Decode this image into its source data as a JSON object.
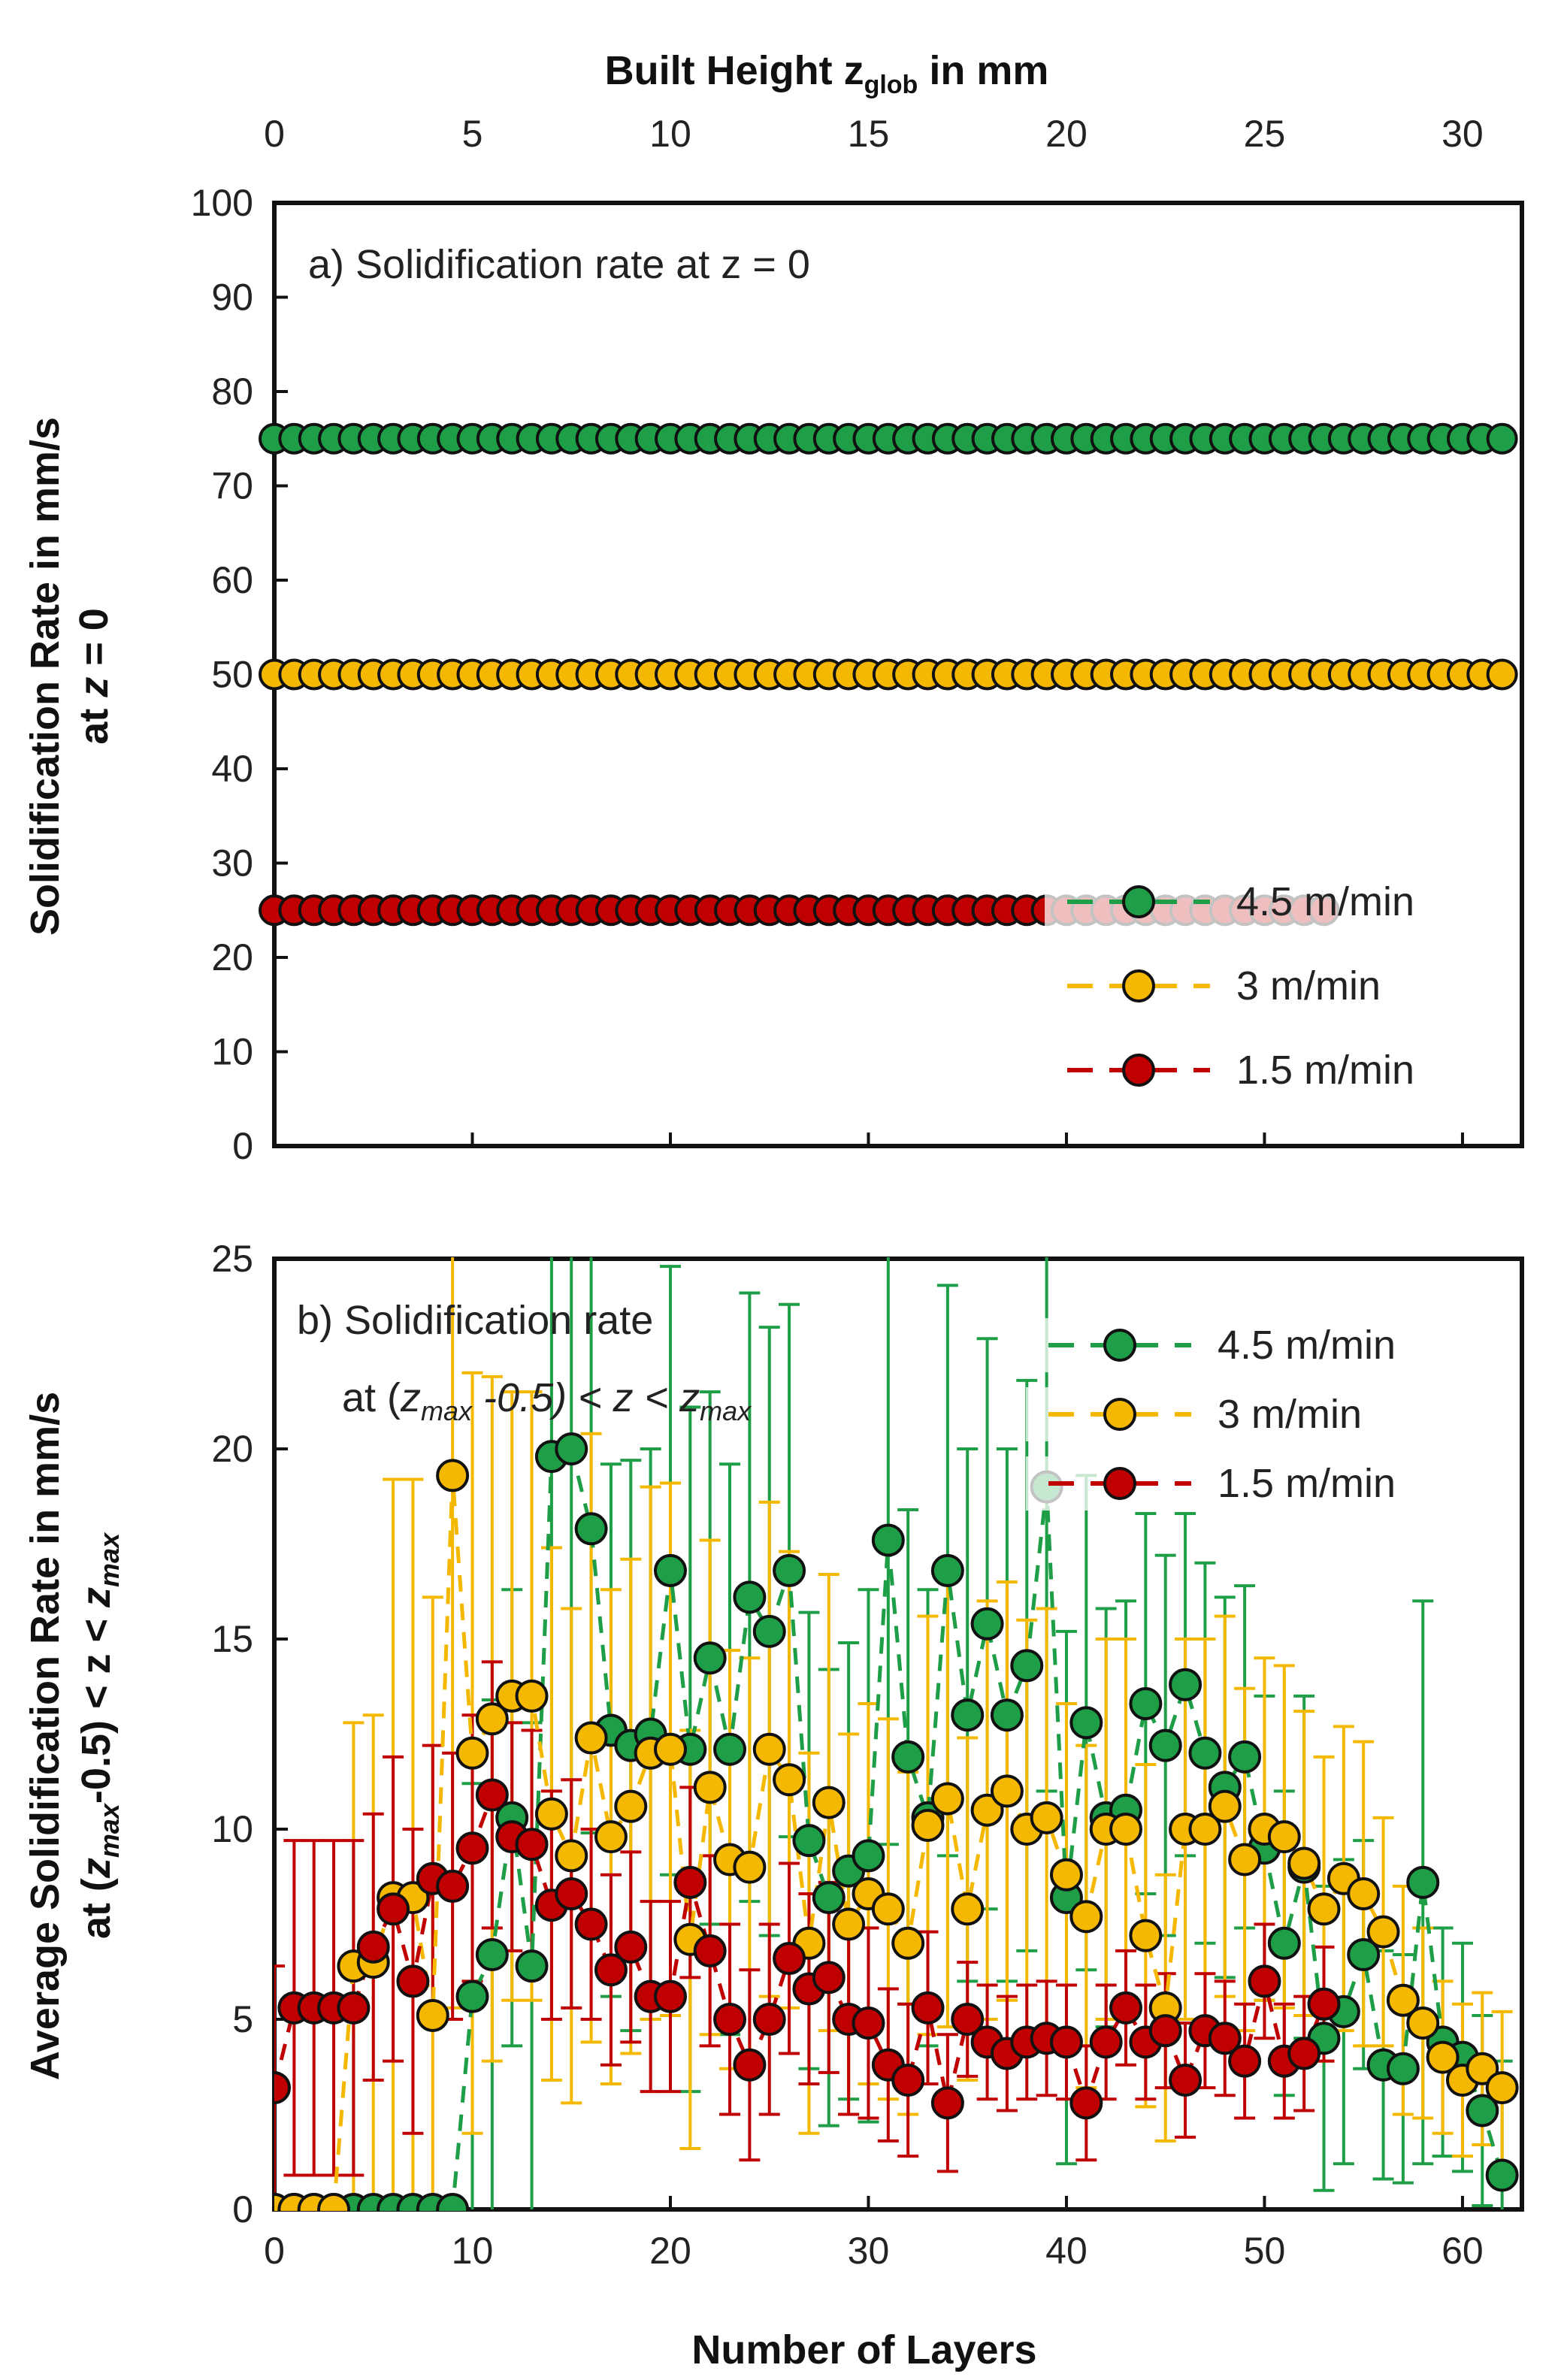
{
  "figure": {
    "top_axis_label": "Built Height",
    "top_axis_var": "z",
    "top_axis_sub": "glob",
    "top_axis_unit": "in mm",
    "bottom_axis_label": "Number of Layers"
  },
  "chart_data": [
    {
      "id": "a",
      "type": "scatter",
      "annotation": "a) Solidification rate at z = 0",
      "ylabel_line1": "Solidification  Rate in mm/s",
      "ylabel_line2_prefix": "at ",
      "ylabel_line2_var": "z",
      "ylabel_line2_suffix": " = 0",
      "xlim": [
        0,
        63
      ],
      "ylim": [
        0,
        100
      ],
      "yticks": [
        0,
        10,
        20,
        30,
        40,
        50,
        60,
        70,
        80,
        90,
        100
      ],
      "top_xlim": [
        0,
        31.5
      ],
      "top_xticks": [
        0,
        5,
        10,
        15,
        20,
        25,
        30
      ],
      "legend_position": "bottom-right",
      "series": [
        {
          "name": "4.5 m/min",
          "color": "#1e9e46",
          "x_range": [
            0,
            62
          ],
          "value": 75
        },
        {
          "name": "3 m/min",
          "color": "#f5b800",
          "x_range": [
            0,
            62
          ],
          "value": 50
        },
        {
          "name": "1.5 m/min",
          "color": "#c00000",
          "x_range": [
            0,
            53
          ],
          "value": 25
        }
      ]
    },
    {
      "id": "b",
      "type": "scatter",
      "annotation_line1": "b) Solidification rate",
      "annotation_line2_prefix": "at (",
      "annotation_line2_var": "z",
      "annotation_line2_sub": "max",
      "annotation_line2_mid": " -0.5) < z < ",
      "annotation_line2_var2": "z",
      "annotation_line2_sub2": "max",
      "ylabel_line1": "Average  Solidification  Rate in mm/s",
      "ylabel_line2_prefix": "at (",
      "ylabel_line2_var": "z",
      "ylabel_line2_sub": "max",
      "ylabel_line2_mid": "-0.5) < z < ",
      "ylabel_line2_var2": "z",
      "ylabel_line2_sub2": "max",
      "xlim": [
        0,
        63
      ],
      "ylim": [
        0,
        25
      ],
      "xticks": [
        0,
        10,
        20,
        30,
        40,
        50,
        60
      ],
      "yticks": [
        0,
        5,
        10,
        15,
        20,
        25
      ],
      "legend_position": "top-right",
      "series": [
        {
          "name": "4.5 m/min",
          "color": "#1e9e46",
          "values": [
            0,
            0,
            0,
            0,
            0,
            0,
            0,
            0,
            0,
            0,
            5.6,
            6.7,
            10.3,
            6.4,
            19.8,
            20,
            17.9,
            12.6,
            12.2,
            12.5,
            16.8,
            12.1,
            14.5,
            12.1,
            16.1,
            15.2,
            16.8,
            9.7,
            8.2,
            8.9,
            9.3,
            17.6,
            11.9,
            10.3,
            16.8,
            13,
            15.4,
            13,
            14.3,
            19,
            8.2,
            12.8,
            10.3,
            10.5,
            13.3,
            12.2,
            13.8,
            12,
            11.1,
            11.9,
            9.5,
            7,
            9,
            4.5,
            5.2,
            6.7,
            3.8,
            3.7,
            8.6,
            4.4,
            4,
            2.6,
            0.9
          ],
          "err": [
            0,
            0,
            0,
            0,
            0,
            0,
            0,
            0,
            0,
            0,
            5.6,
            6.7,
            6,
            6.4,
            12,
            12,
            8,
            7,
            7.5,
            7.5,
            8,
            9,
            7,
            7.5,
            8,
            8,
            7,
            6,
            6,
            6,
            7,
            8,
            6.5,
            6,
            7.5,
            7,
            7.5,
            7,
            7.5,
            8,
            7,
            6.5,
            5.5,
            5.5,
            5,
            5,
            4.5,
            5,
            5,
            4.5,
            4,
            4,
            4.5,
            4,
            4,
            3,
            3,
            3,
            7.4,
            3,
            3,
            2.5,
            3
          ]
        },
        {
          "name": "3 m/min",
          "color": "#f5b800",
          "values": [
            0,
            0,
            0,
            0,
            6.4,
            6.5,
            8.2,
            8.2,
            5.1,
            19.3,
            12,
            12.9,
            13.5,
            13.5,
            10.4,
            9.3,
            12.4,
            9.8,
            10.6,
            12,
            12.1,
            7.1,
            11.1,
            9.2,
            9,
            12.1,
            11.3,
            7,
            10.7,
            7.5,
            8.3,
            7.9,
            7,
            10.1,
            10.8,
            7.9,
            10.5,
            11,
            10,
            10.3,
            8.8,
            7.7,
            10,
            10,
            7.2,
            5.3,
            10,
            10,
            10.6,
            9.2,
            10,
            9.8,
            9.1,
            7.9,
            8.7,
            8.3,
            7.3,
            5.5,
            4.9,
            4,
            3.4,
            3.7,
            3.2
          ],
          "err": [
            0,
            0,
            0,
            0,
            6.4,
            6.5,
            11,
            11,
            11,
            14,
            10,
            9,
            8,
            8,
            7,
            6.5,
            8,
            6.5,
            6.5,
            7,
            7,
            5.5,
            6.5,
            5.5,
            5.5,
            6.5,
            6,
            5,
            6,
            5,
            5,
            5,
            4.5,
            5.5,
            6,
            4.5,
            5.5,
            5.5,
            5.5,
            5.5,
            4.5,
            4.5,
            5,
            5,
            4.5,
            3.5,
            5,
            5,
            5,
            4.5,
            4.5,
            4.5,
            4,
            4,
            4,
            4,
            3,
            3,
            2.5,
            2,
            2,
            2,
            2
          ]
        },
        {
          "name": "1.5 m/min",
          "color": "#c00000",
          "values": [
            3.2,
            5.3,
            5.3,
            5.3,
            5.3,
            6.9,
            7.9,
            6,
            8.7,
            8.5,
            9.5,
            10.9,
            9.8,
            9.6,
            8,
            8.3,
            7.5,
            6.3,
            6.9,
            5.6,
            5.6,
            8.6,
            6.8,
            5,
            3.8,
            5,
            6.6,
            5.8,
            6.1,
            5,
            4.9,
            3.8,
            3.4,
            5.3,
            2.8,
            5,
            4.4,
            4.1,
            4.4,
            4.5,
            4.4,
            2.8,
            4.4,
            5.3,
            4.4,
            4.7,
            3.4,
            4.7,
            4.5,
            3.9,
            6,
            3.9,
            4.1,
            5.4
          ],
          "err": [
            3.2,
            4.4,
            4.4,
            4.4,
            4.4,
            3.5,
            4,
            4,
            3.5,
            3.5,
            3.5,
            3.5,
            3,
            3,
            3,
            3,
            2.5,
            2.5,
            2.5,
            2.5,
            2.5,
            2.5,
            2.5,
            2.5,
            2.5,
            2.5,
            2.5,
            2.5,
            2.5,
            2.5,
            2.5,
            2,
            2,
            2,
            1.8,
            1.5,
            1.5,
            1.5,
            1.5,
            1.5,
            1.5,
            1.5,
            1.5,
            1.5,
            1.5,
            1.5,
            1.5,
            1.5,
            1.5,
            1.5,
            1.5,
            1.5,
            1.5,
            1.5
          ]
        }
      ]
    }
  ]
}
